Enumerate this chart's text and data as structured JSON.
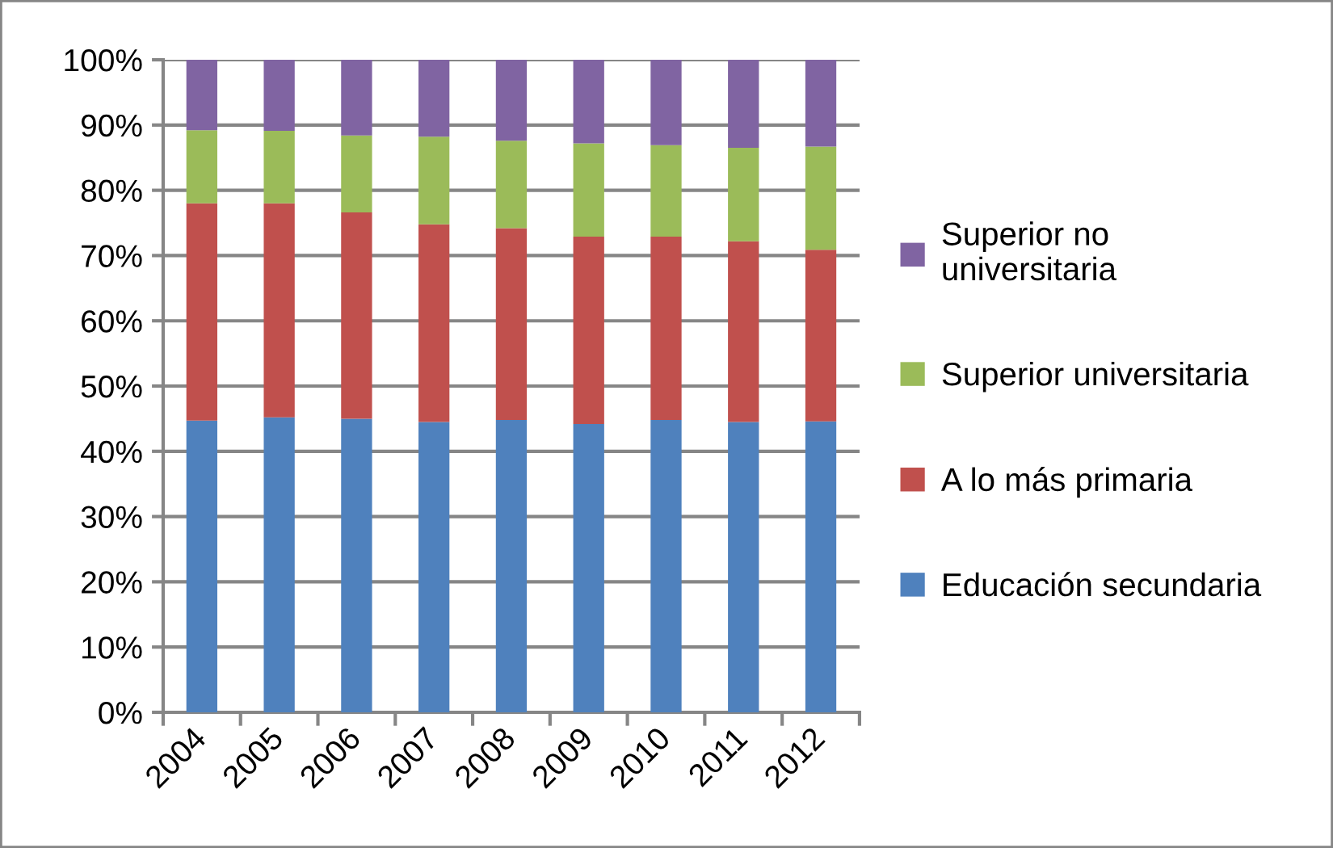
{
  "chart_data": {
    "type": "bar",
    "stacked": true,
    "categories": [
      "2004",
      "2005",
      "2006",
      "2007",
      "2008",
      "2009",
      "2010",
      "2011",
      "2012"
    ],
    "series": [
      {
        "name": "Educación secundaria",
        "color": "#4f81bd",
        "values": [
          44.7,
          45.2,
          45.0,
          44.5,
          44.8,
          44.2,
          44.8,
          44.5,
          44.6
        ]
      },
      {
        "name": "A lo más primaria",
        "color": "#c0504d",
        "values": [
          33.3,
          32.8,
          31.6,
          30.3,
          29.4,
          28.7,
          28.1,
          27.7,
          26.3
        ]
      },
      {
        "name": "Superior universitaria",
        "color": "#9bbb59",
        "values": [
          11.2,
          11.1,
          11.8,
          13.4,
          13.4,
          14.3,
          14.0,
          14.3,
          15.8
        ]
      },
      {
        "name": "Superior no universitaria",
        "color": "#8064a2",
        "values": [
          10.8,
          10.9,
          11.6,
          11.8,
          12.4,
          12.8,
          13.1,
          13.5,
          13.3
        ]
      }
    ],
    "ylim": [
      0,
      100
    ],
    "yticks": [
      {
        "value": 0,
        "label": "0%"
      },
      {
        "value": 10,
        "label": "10%"
      },
      {
        "value": 20,
        "label": "20%"
      },
      {
        "value": 30,
        "label": "30%"
      },
      {
        "value": 40,
        "label": "40%"
      },
      {
        "value": 50,
        "label": "50%"
      },
      {
        "value": 60,
        "label": "60%"
      },
      {
        "value": 70,
        "label": "70%"
      },
      {
        "value": 80,
        "label": "80%"
      },
      {
        "value": 90,
        "label": "90%"
      },
      {
        "value": 100,
        "label": "100%"
      }
    ],
    "grid": "y",
    "legend": "right"
  }
}
